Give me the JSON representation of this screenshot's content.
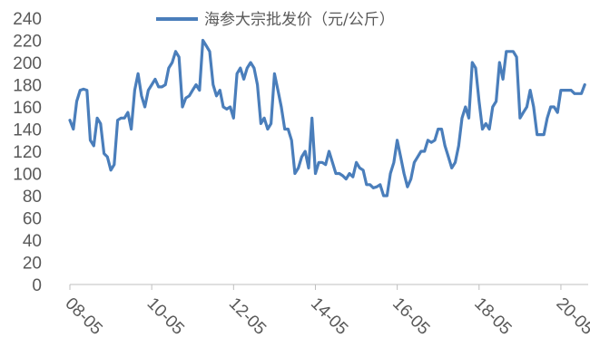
{
  "chart_data": {
    "type": "line",
    "title": "",
    "xlabel": "",
    "ylabel": "",
    "legend": {
      "position": "top",
      "entries": [
        "海参大宗批发价（元/公斤）"
      ]
    },
    "ylim": [
      0,
      240
    ],
    "yticks": [
      "0",
      "20",
      "40",
      "60",
      "80",
      "100",
      "120",
      "140",
      "160",
      "180",
      "200",
      "220",
      "240"
    ],
    "xlim": [
      "2008-05",
      "2021-01"
    ],
    "xticks": [
      {
        "label": "08-05",
        "date": "2008-05"
      },
      {
        "label": "10-05",
        "date": "2010-05"
      },
      {
        "label": "12-05",
        "date": "2012-05"
      },
      {
        "label": "14-05",
        "date": "2014-05"
      },
      {
        "label": "16-05",
        "date": "2016-05"
      },
      {
        "label": "18-05",
        "date": "2018-05"
      },
      {
        "label": "20-05",
        "date": "2020-05"
      }
    ],
    "grid": false,
    "colors": {
      "series": "#4a7ebb",
      "axis": "#bfbfbf",
      "text": "#595959"
    },
    "series": [
      {
        "name": "海参大宗批发价（元/公斤）",
        "points": [
          [
            "2008-05",
            148
          ],
          [
            "2008-06",
            140
          ],
          [
            "2008-07",
            165
          ],
          [
            "2008-08",
            175
          ],
          [
            "2008-09",
            176
          ],
          [
            "2008-10",
            175
          ],
          [
            "2008-11",
            130
          ],
          [
            "2008-12",
            125
          ],
          [
            "2009-01",
            150
          ],
          [
            "2009-02",
            145
          ],
          [
            "2009-03",
            118
          ],
          [
            "2009-04",
            115
          ],
          [
            "2009-05",
            103
          ],
          [
            "2009-06",
            108
          ],
          [
            "2009-07",
            148
          ],
          [
            "2009-08",
            150
          ],
          [
            "2009-09",
            150
          ],
          [
            "2009-10",
            155
          ],
          [
            "2009-11",
            140
          ],
          [
            "2009-12",
            175
          ],
          [
            "2010-01",
            190
          ],
          [
            "2010-02",
            170
          ],
          [
            "2010-03",
            160
          ],
          [
            "2010-04",
            175
          ],
          [
            "2010-05",
            180
          ],
          [
            "2010-06",
            185
          ],
          [
            "2010-07",
            178
          ],
          [
            "2010-08",
            178
          ],
          [
            "2010-09",
            180
          ],
          [
            "2010-10",
            195
          ],
          [
            "2010-11",
            200
          ],
          [
            "2010-12",
            210
          ],
          [
            "2011-01",
            205
          ],
          [
            "2011-02",
            160
          ],
          [
            "2011-03",
            168
          ],
          [
            "2011-04",
            170
          ],
          [
            "2011-05",
            175
          ],
          [
            "2011-06",
            180
          ],
          [
            "2011-07",
            175
          ],
          [
            "2011-08",
            220
          ],
          [
            "2011-09",
            215
          ],
          [
            "2011-10",
            210
          ],
          [
            "2011-11",
            180
          ],
          [
            "2011-12",
            170
          ],
          [
            "2012-01",
            175
          ],
          [
            "2012-02",
            160
          ],
          [
            "2012-03",
            158
          ],
          [
            "2012-04",
            160
          ],
          [
            "2012-05",
            150
          ],
          [
            "2012-06",
            190
          ],
          [
            "2012-07",
            195
          ],
          [
            "2012-08",
            185
          ],
          [
            "2012-09",
            195
          ],
          [
            "2012-10",
            200
          ],
          [
            "2012-11",
            195
          ],
          [
            "2012-12",
            180
          ],
          [
            "2013-01",
            145
          ],
          [
            "2013-02",
            150
          ],
          [
            "2013-03",
            140
          ],
          [
            "2013-04",
            145
          ],
          [
            "2013-05",
            190
          ],
          [
            "2013-06",
            175
          ],
          [
            "2013-07",
            160
          ],
          [
            "2013-08",
            140
          ],
          [
            "2013-09",
            140
          ],
          [
            "2013-10",
            130
          ],
          [
            "2013-11",
            100
          ],
          [
            "2013-12",
            105
          ],
          [
            "2014-01",
            115
          ],
          [
            "2014-02",
            120
          ],
          [
            "2014-03",
            105
          ],
          [
            "2014-04",
            150
          ],
          [
            "2014-05",
            100
          ],
          [
            "2014-06",
            110
          ],
          [
            "2014-07",
            110
          ],
          [
            "2014-08",
            108
          ],
          [
            "2014-09",
            120
          ],
          [
            "2014-10",
            110
          ],
          [
            "2014-11",
            100
          ],
          [
            "2014-12",
            100
          ],
          [
            "2015-01",
            98
          ],
          [
            "2015-02",
            95
          ],
          [
            "2015-03",
            100
          ],
          [
            "2015-04",
            97
          ],
          [
            "2015-05",
            110
          ],
          [
            "2015-06",
            105
          ],
          [
            "2015-07",
            103
          ],
          [
            "2015-08",
            90
          ],
          [
            "2015-09",
            90
          ],
          [
            "2015-10",
            87
          ],
          [
            "2015-11",
            88
          ],
          [
            "2015-12",
            90
          ],
          [
            "2016-01",
            80
          ],
          [
            "2016-02",
            80
          ],
          [
            "2016-03",
            100
          ],
          [
            "2016-04",
            110
          ],
          [
            "2016-05",
            130
          ],
          [
            "2016-06",
            115
          ],
          [
            "2016-07",
            100
          ],
          [
            "2016-08",
            88
          ],
          [
            "2016-09",
            95
          ],
          [
            "2016-10",
            110
          ],
          [
            "2016-11",
            115
          ],
          [
            "2016-12",
            120
          ],
          [
            "2017-01",
            120
          ],
          [
            "2017-02",
            130
          ],
          [
            "2017-03",
            128
          ],
          [
            "2017-04",
            130
          ],
          [
            "2017-05",
            140
          ],
          [
            "2017-06",
            140
          ],
          [
            "2017-07",
            125
          ],
          [
            "2017-08",
            115
          ],
          [
            "2017-09",
            105
          ],
          [
            "2017-10",
            110
          ],
          [
            "2017-11",
            125
          ],
          [
            "2017-12",
            150
          ],
          [
            "2018-01",
            160
          ],
          [
            "2018-02",
            150
          ],
          [
            "2018-03",
            200
          ],
          [
            "2018-04",
            195
          ],
          [
            "2018-05",
            165
          ],
          [
            "2018-06",
            140
          ],
          [
            "2018-07",
            145
          ],
          [
            "2018-08",
            140
          ],
          [
            "2018-09",
            160
          ],
          [
            "2018-10",
            165
          ],
          [
            "2018-11",
            200
          ],
          [
            "2018-12",
            185
          ],
          [
            "2019-01",
            210
          ],
          [
            "2019-02",
            210
          ],
          [
            "2019-03",
            210
          ],
          [
            "2019-04",
            205
          ],
          [
            "2019-05",
            150
          ],
          [
            "2019-06",
            155
          ],
          [
            "2019-07",
            160
          ],
          [
            "2019-08",
            175
          ],
          [
            "2019-09",
            160
          ],
          [
            "2019-10",
            135
          ],
          [
            "2019-11",
            135
          ],
          [
            "2019-12",
            135
          ],
          [
            "2020-01",
            150
          ],
          [
            "2020-02",
            160
          ],
          [
            "2020-03",
            160
          ],
          [
            "2020-04",
            155
          ],
          [
            "2020-05",
            175
          ],
          [
            "2020-06",
            175
          ],
          [
            "2020-07",
            175
          ],
          [
            "2020-08",
            175
          ],
          [
            "2020-09",
            172
          ],
          [
            "2020-10",
            172
          ],
          [
            "2020-11",
            172
          ],
          [
            "2020-12",
            180
          ]
        ]
      }
    ]
  }
}
